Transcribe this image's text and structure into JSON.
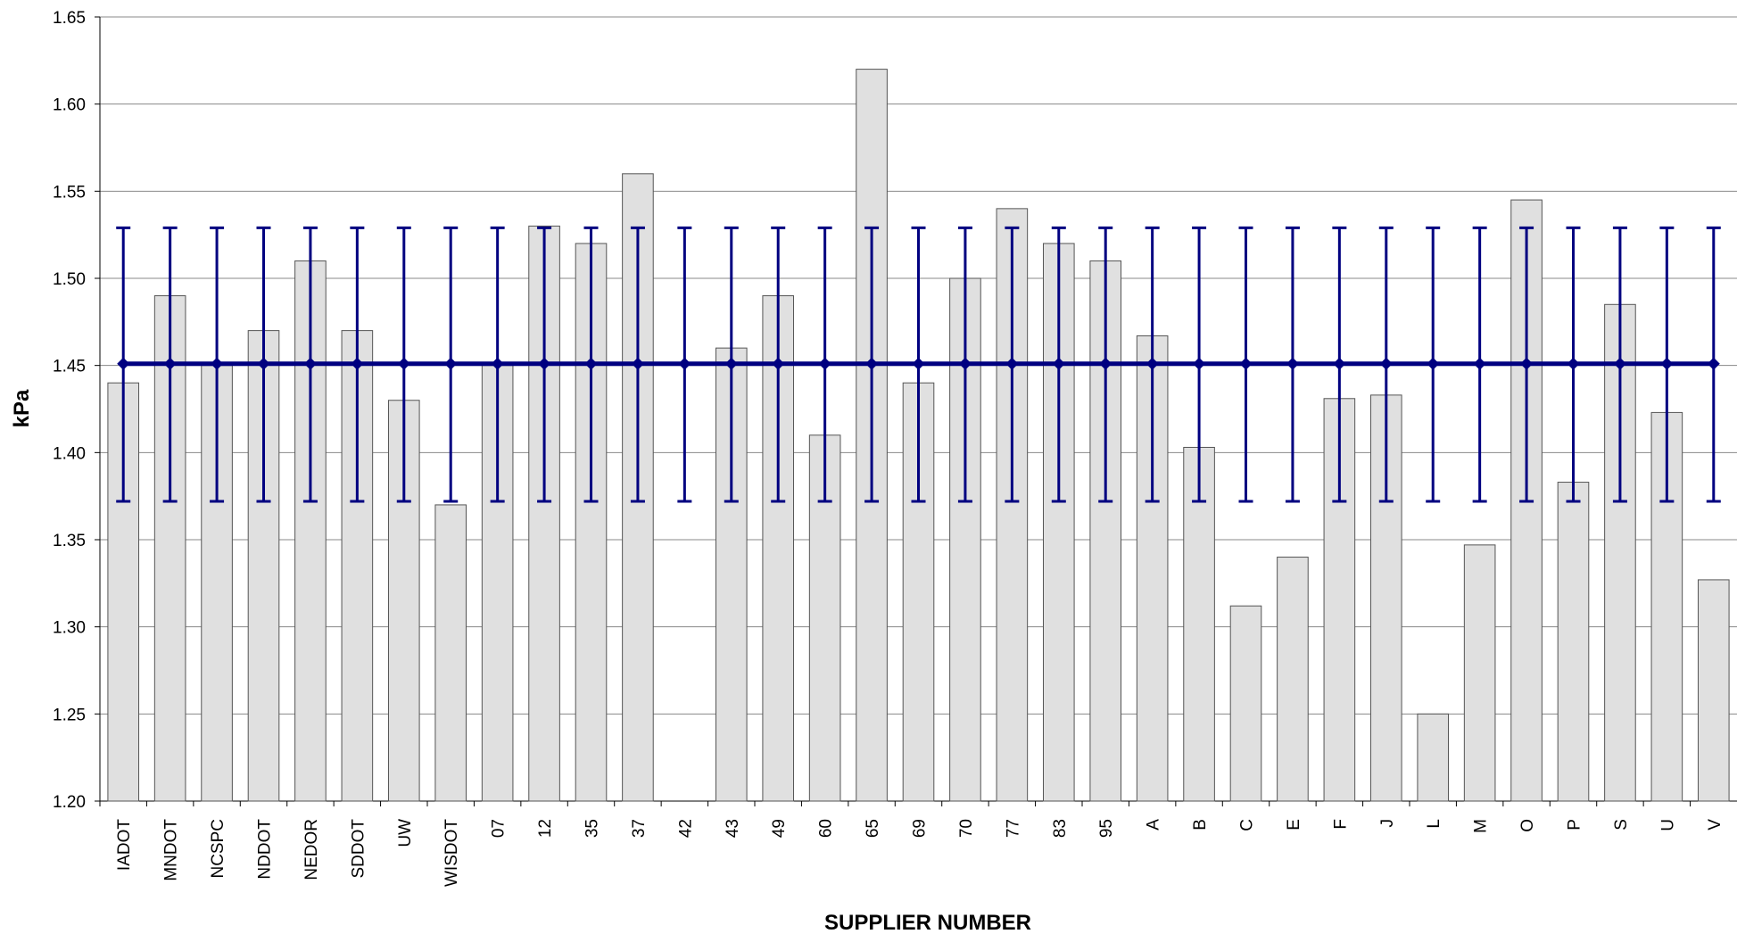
{
  "chart_data": {
    "type": "bar",
    "categories": [
      "IADOT",
      "MNDOT",
      "NCSPC",
      "NDDOT",
      "NEDOR",
      "SDDOT",
      "UW",
      "WISDOT",
      "07",
      "12",
      "35",
      "37",
      "42",
      "43",
      "49",
      "60",
      "65",
      "69",
      "70",
      "77",
      "83",
      "95",
      "A",
      "B",
      "C",
      "E",
      "F",
      "J",
      "L",
      "M",
      "O",
      "P",
      "S",
      "U",
      "V"
    ],
    "values": [
      1.44,
      1.49,
      1.45,
      1.47,
      1.51,
      1.47,
      1.43,
      1.37,
      1.45,
      1.53,
      1.52,
      1.56,
      null,
      1.46,
      1.49,
      1.41,
      1.62,
      1.44,
      1.5,
      1.54,
      1.52,
      1.51,
      1.467,
      1.403,
      1.312,
      1.34,
      1.431,
      1.433,
      1.25,
      1.347,
      1.545,
      1.383,
      1.485,
      1.423,
      1.327
    ],
    "color": "#e0e0e0",
    "mean": 1.451,
    "upper": 1.529,
    "lower": 1.372,
    "line_color": "#000080",
    "ylim": [
      1.2,
      1.65
    ],
    "yticks": [
      {
        "value": 1.2,
        "label": "1.20"
      },
      1.25,
      {
        "value": 1.3,
        "label": "1.30"
      },
      1.35,
      {
        "value": 1.4,
        "label": "1.40"
      },
      1.45,
      {
        "value": 1.5,
        "label": "1.50"
      },
      1.55,
      {
        "value": 1.6,
        "label": "1.60"
      },
      1.65
    ],
    "grid": true,
    "ylabel": "kPa",
    "xlabel": "SUPPLIER NUMBER"
  }
}
